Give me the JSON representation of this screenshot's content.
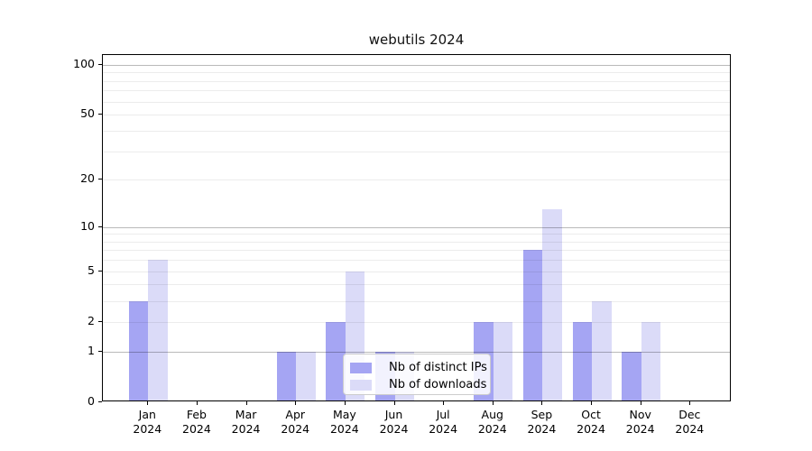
{
  "title": "webutils 2024",
  "colors": {
    "series_ips": "#a5a5f3",
    "series_downloads": "#dbdbf8",
    "axis": "#000000",
    "grid_major": "#bababa",
    "grid_minor": "#ececec",
    "legend_border": "#cccccc",
    "background": "#ffffff"
  },
  "legend": {
    "entries": [
      {
        "label": "Nb of distinct IPs",
        "color": "#a5a5f3"
      },
      {
        "label": "Nb of downloads",
        "color": "#dbdbf8"
      }
    ]
  },
  "chart_data": {
    "type": "bar",
    "title": "webutils 2024",
    "categories": [
      "Jan",
      "Feb",
      "Mar",
      "Apr",
      "May",
      "Jun",
      "Jul",
      "Aug",
      "Sep",
      "Oct",
      "Nov",
      "Dec"
    ],
    "category_year": "2024",
    "series": [
      {
        "name": "Nb of distinct IPs",
        "color": "#a5a5f3",
        "values": [
          3,
          0,
          0,
          1,
          2,
          1,
          0,
          2,
          7,
          2,
          1,
          0
        ]
      },
      {
        "name": "Nb of downloads",
        "color": "#dbdbf8",
        "values": [
          6,
          0,
          0,
          1,
          5,
          1,
          0,
          2,
          13,
          3,
          2,
          0
        ]
      }
    ],
    "xlabel": "",
    "ylabel": "",
    "yscale": "log1p",
    "ylim": [
      0,
      112
    ],
    "yticks": [
      0,
      1,
      2,
      5,
      10,
      20,
      50,
      100
    ],
    "major_gridlines": [
      1,
      10,
      100
    ],
    "minor_gridlines": [
      2,
      3,
      4,
      5,
      6,
      7,
      8,
      9,
      20,
      30,
      40,
      50,
      60,
      70,
      80,
      90
    ],
    "grid": true,
    "legend_position": "inside lower center"
  }
}
